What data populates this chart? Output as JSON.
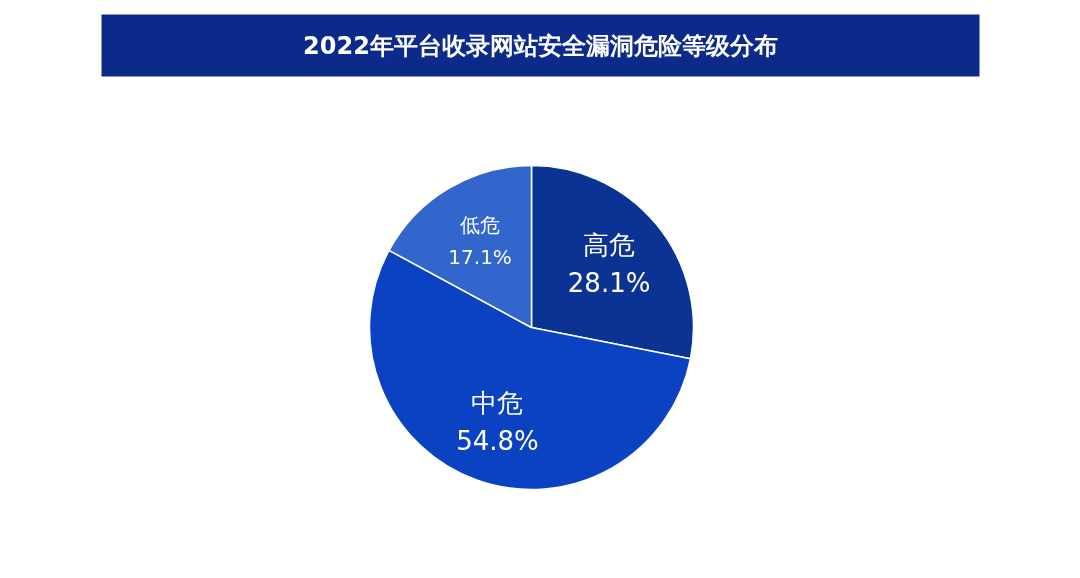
{
  "chart_data": {
    "type": "pie",
    "title": "2022年平台收录网站安全漏洞危险等级分布",
    "categories": [
      "高危",
      "中危",
      "低危"
    ],
    "values": [
      28.1,
      54.8,
      17.1
    ],
    "value_labels": [
      "28.1%",
      "54.8%",
      "17.1%"
    ],
    "colors": [
      "#0a3394",
      "#0a42c2",
      "#3366cc"
    ]
  }
}
